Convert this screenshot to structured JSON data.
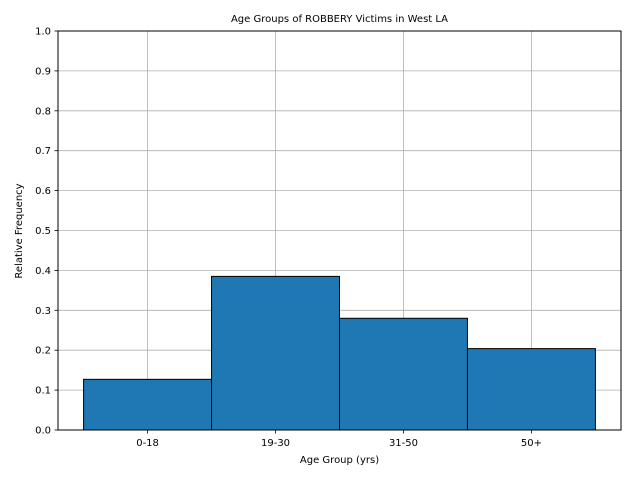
{
  "chart_data": {
    "type": "bar",
    "title": "Age Groups of ROBBERY Victims in West LA",
    "xlabel": "Age Group (yrs)",
    "ylabel": "Relative Frequency",
    "categories": [
      "0-18",
      "19-30",
      "31-50",
      "50+"
    ],
    "values": [
      0.127,
      0.385,
      0.28,
      0.204
    ],
    "ylim": [
      0,
      1.0
    ],
    "yticks": [
      "0.0",
      "0.1",
      "0.2",
      "0.3",
      "0.4",
      "0.5",
      "0.6",
      "0.7",
      "0.8",
      "0.9",
      "1.0"
    ],
    "grid": true,
    "bar_color": "#1f77b4",
    "edge_color": "#000000"
  }
}
